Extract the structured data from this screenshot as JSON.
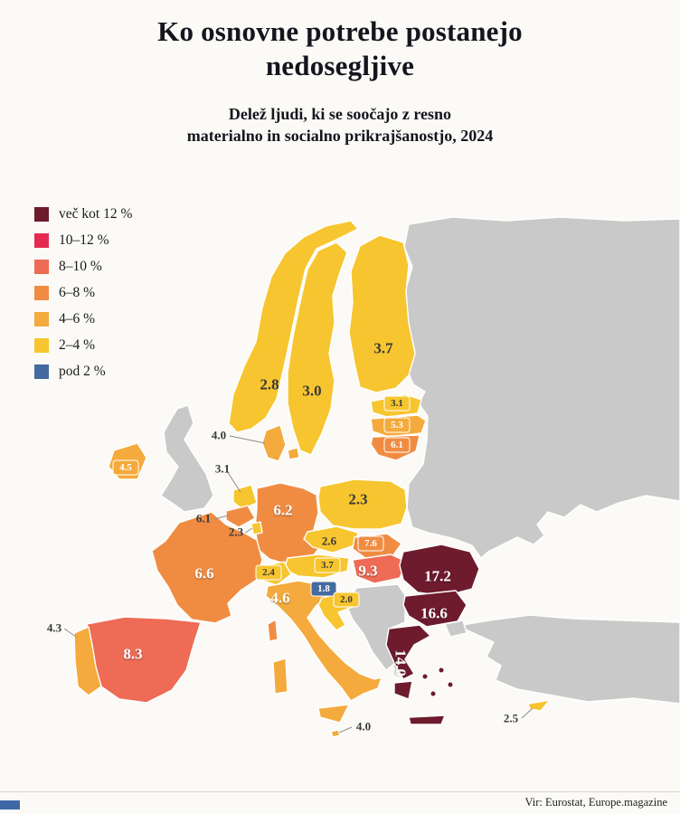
{
  "header": {
    "title": "Ko osnovne potrebe postanejo nedosegljive",
    "subtitle_line1": "Delež ljudi, ki se soočajo z resno",
    "subtitle_line2": "materialno in socialno prikrajšanostjo, 2024"
  },
  "footer": {
    "source": "Vir: Eurostat, Europe.magazine"
  },
  "legend": {
    "items": [
      {
        "band": "gt12",
        "label": "več kot 12 %",
        "color": "#6d1b2d"
      },
      {
        "band": "b10_12",
        "label": "10–12 %",
        "color": "#e52a52"
      },
      {
        "band": "b8_10",
        "label": "8–10 %",
        "color": "#ee6b55"
      },
      {
        "band": "b6_8",
        "label": "6–8 %",
        "color": "#f08c42"
      },
      {
        "band": "b4_6",
        "label": "4–6 %",
        "color": "#f4aa3c"
      },
      {
        "band": "b2_4",
        "label": "2–4 %",
        "color": "#f7c52f"
      },
      {
        "band": "lt2",
        "label": "pod 2 %",
        "color": "#456a9f"
      }
    ],
    "no_data_color": "#c9c9c9"
  },
  "chart_data": {
    "type": "choropleth",
    "region": "Europe",
    "title": "Ko osnovne potrebe postanejo nedosegljive",
    "subtitle": "Delež ljudi, ki se soočajo z resno materialno in socialno prikrajšanostjo, 2024",
    "unit": "%",
    "year": 2024,
    "source": "Eurostat, Europe.magazine",
    "countries": [
      {
        "code": "NO",
        "name": "Norway",
        "value": "2.8",
        "band": "b2_4"
      },
      {
        "code": "SE",
        "name": "Sweden",
        "value": "3.0",
        "band": "b2_4"
      },
      {
        "code": "FI",
        "name": "Finland",
        "value": "3.7",
        "band": "b2_4"
      },
      {
        "code": "EE",
        "name": "Estonia",
        "value": "3.1",
        "band": "b2_4"
      },
      {
        "code": "LV",
        "name": "Latvia",
        "value": "5.3",
        "band": "b4_6"
      },
      {
        "code": "LT",
        "name": "Lithuania",
        "value": "6.1",
        "band": "b6_8"
      },
      {
        "code": "DK",
        "name": "Denmark",
        "value": "4.0",
        "band": "b4_6"
      },
      {
        "code": "IE",
        "name": "Ireland",
        "value": "4.5",
        "band": "b4_6"
      },
      {
        "code": "DE",
        "name": "Germany",
        "value": "6.2",
        "band": "b6_8"
      },
      {
        "code": "PL",
        "name": "Poland",
        "value": "2.3",
        "band": "b2_4"
      },
      {
        "code": "CZ",
        "name": "Czechia",
        "value": "2.6",
        "band": "b2_4"
      },
      {
        "code": "SK",
        "name": "Slovakia",
        "value": "7.6",
        "band": "b6_8"
      },
      {
        "code": "HU",
        "name": "Hungary",
        "value": "9.3",
        "band": "b8_10"
      },
      {
        "code": "AT",
        "name": "Austria",
        "value": "3.7",
        "band": "b2_4"
      },
      {
        "code": "CH",
        "name": "Switzerland",
        "value": "2.4",
        "band": "b2_4"
      },
      {
        "code": "FR",
        "name": "France",
        "value": "6.6",
        "band": "b6_8"
      },
      {
        "code": "NL",
        "name": "Netherlands",
        "value": "3.1",
        "band": "b2_4"
      },
      {
        "code": "BE",
        "name": "Belgium",
        "value": "6.1",
        "band": "b6_8"
      },
      {
        "code": "LU",
        "name": "Luxembourg",
        "value": "2.3",
        "band": "b2_4"
      },
      {
        "code": "ES",
        "name": "Spain",
        "value": "8.3",
        "band": "b8_10"
      },
      {
        "code": "PT",
        "name": "Portugal",
        "value": "4.3",
        "band": "b4_6"
      },
      {
        "code": "IT",
        "name": "Italy",
        "value": "4.6",
        "band": "b4_6"
      },
      {
        "code": "SI",
        "name": "Slovenia",
        "value": "1.8",
        "band": "lt2"
      },
      {
        "code": "HR",
        "name": "Croatia",
        "value": "2.0",
        "band": "b2_4"
      },
      {
        "code": "RO",
        "name": "Romania",
        "value": "17.2",
        "band": "gt12"
      },
      {
        "code": "BG",
        "name": "Bulgaria",
        "value": "16.6",
        "band": "gt12"
      },
      {
        "code": "GR",
        "name": "Greece",
        "value": "14.0",
        "band": "gt12"
      },
      {
        "code": "CY",
        "name": "Cyprus",
        "value": "2.5",
        "band": "b2_4"
      },
      {
        "code": "MT",
        "name": "Malta",
        "value": "4.0",
        "band": "b4_6"
      }
    ]
  }
}
